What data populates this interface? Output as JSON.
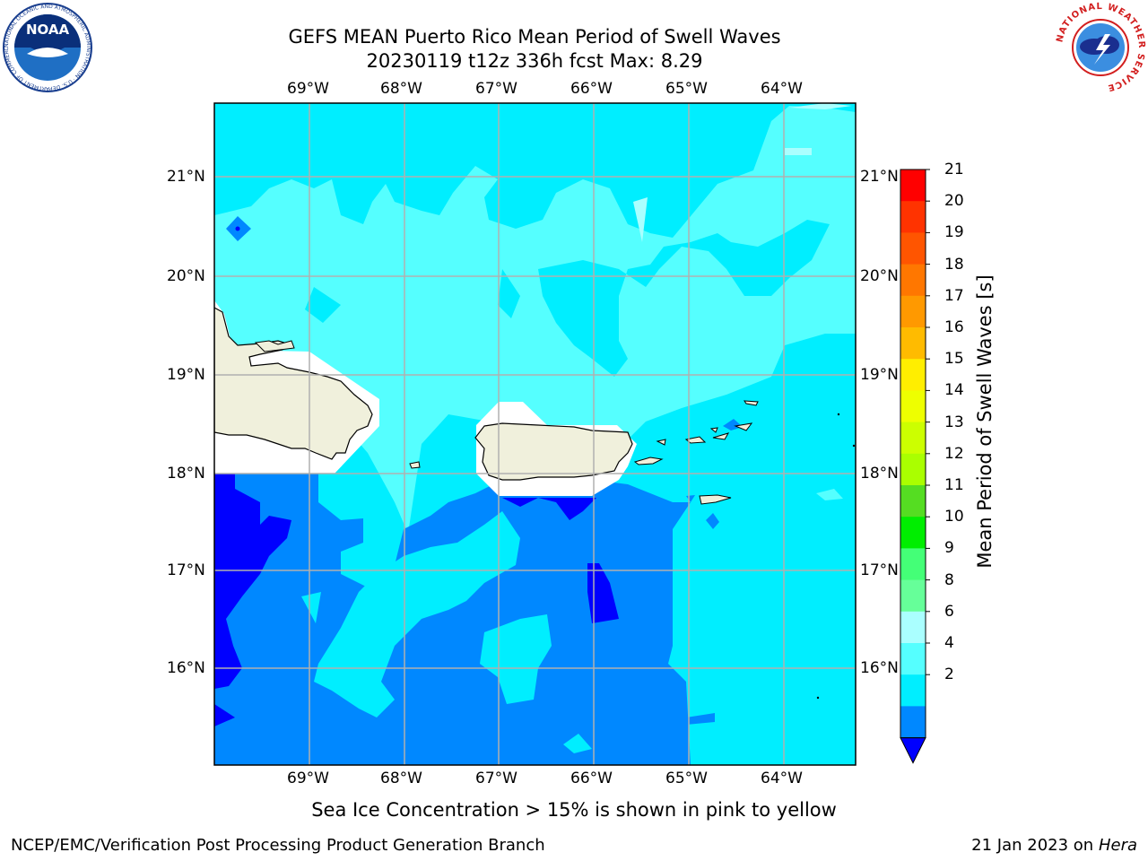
{
  "header": {
    "title_line1": "GEFS MEAN Puerto Rico Mean Period of Swell Waves",
    "title_line2": "20230119 t12z 336h fcst   Max: 8.29"
  },
  "map": {
    "lon_labels": [
      "69°W",
      "68°W",
      "67°W",
      "66°W",
      "65°W",
      "64°W"
    ],
    "lat_labels": [
      "21°N",
      "20°N",
      "19°N",
      "18°N",
      "17°N",
      "16°N"
    ],
    "lon_range": [
      -70,
      -63.25
    ],
    "lat_range": [
      15.0,
      21.75
    ],
    "field": "Mean Period of Swell Waves",
    "grid": true
  },
  "colorbar": {
    "label": "Mean Period of Swell Waves [s]",
    "ticks": [
      "21",
      "20",
      "19",
      "18",
      "17",
      "16",
      "15",
      "14",
      "13",
      "12",
      "11",
      "10",
      "9",
      "8",
      "6",
      "4",
      "2"
    ],
    "colors": [
      "#ff0000",
      "#ff3300",
      "#ff5500",
      "#ff7700",
      "#ff9900",
      "#ffbb00",
      "#ffee00",
      "#eeff00",
      "#ccff00",
      "#aaff00",
      "#55dd22",
      "#00ee00",
      "#44ff77",
      "#66ff99",
      "#aaffff",
      "#55ffff",
      "#00eeff",
      "#0088ff",
      "#0000ff"
    ],
    "under_color": "#0000ff"
  },
  "legend_note": "Sea Ice Concentration > 15% is shown in pink to yellow",
  "footer": {
    "left": "NCEP/EMC/Verification Post Processing Product Generation Branch",
    "date": "21 Jan 2023 on ",
    "machine": "Hera"
  },
  "logos": {
    "noaa_text": "NOAA",
    "noaa_ring": "NATIONAL OCEANIC AND ATMOSPHERIC ADMINISTRATION · U.S. DEPARTMENT OF COMMERCE",
    "nws_ring": "NATIONAL WEATHER SERVICE"
  }
}
